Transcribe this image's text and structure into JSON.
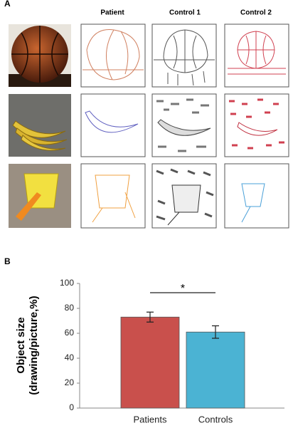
{
  "panel_a": {
    "label": "A",
    "columns": [
      "Patient",
      "Control 1",
      "Control 2"
    ]
  },
  "chart_data": {
    "type": "bar",
    "panel_label": "B",
    "ylabel": [
      "Object size",
      "(drawing/picture,%)"
    ],
    "categories": [
      "Patients",
      "Controls"
    ],
    "values": [
      73,
      61
    ],
    "errors": [
      4,
      5
    ],
    "colors": [
      "#c9504c",
      "#4bb3d3"
    ],
    "ylim": [
      0,
      100
    ],
    "yticks": [
      0,
      20,
      40,
      60,
      80,
      100
    ],
    "annotation": "*"
  }
}
